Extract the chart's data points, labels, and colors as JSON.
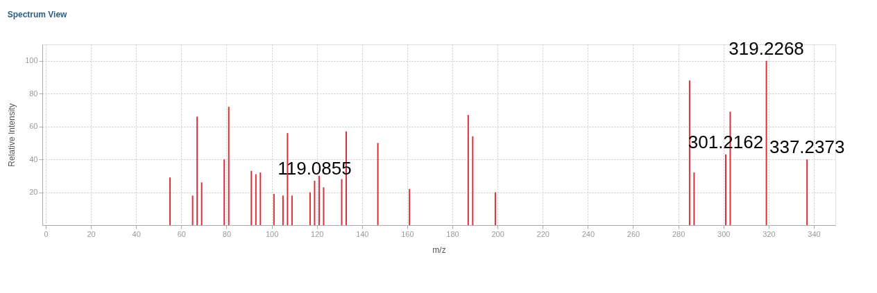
{
  "chart_data": {
    "type": "bar",
    "title": "Spectrum View",
    "xlabel": "m/z",
    "ylabel": "Relative Intensity",
    "x": [
      55,
      65,
      67,
      69,
      79,
      81,
      91,
      93,
      95,
      101,
      105,
      107,
      109,
      117,
      119,
      121,
      123,
      131,
      133,
      147,
      161,
      187,
      189,
      199,
      285,
      287,
      301,
      303,
      319,
      337
    ],
    "series": [
      {
        "color": "#d9303a",
        "values": [
          29,
          18,
          66,
          26,
          40,
          72,
          33,
          31,
          32,
          19,
          18,
          56,
          18,
          20,
          27,
          30,
          23,
          28,
          57,
          50,
          22,
          67,
          54,
          20,
          88,
          32,
          43,
          69,
          100,
          40
        ]
      }
    ],
    "xlim": [
      0,
      348
    ],
    "xticks": [
      0,
      20,
      40,
      60,
      80,
      100,
      120,
      140,
      160,
      180,
      200,
      220,
      240,
      260,
      280,
      300,
      320,
      340
    ],
    "ylim": [
      0,
      110
    ],
    "yticks": [
      20,
      40,
      60,
      80,
      100
    ],
    "grid": true,
    "legend": false,
    "annotations": [
      {
        "text": "119.0855",
        "x": 119,
        "y": 27
      },
      {
        "text": "319.2268",
        "x": 319,
        "y": 100
      },
      {
        "text": "301.2162",
        "x": 301,
        "y": 43
      },
      {
        "text": "337.2373",
        "x": 337,
        "y": 40
      }
    ]
  }
}
